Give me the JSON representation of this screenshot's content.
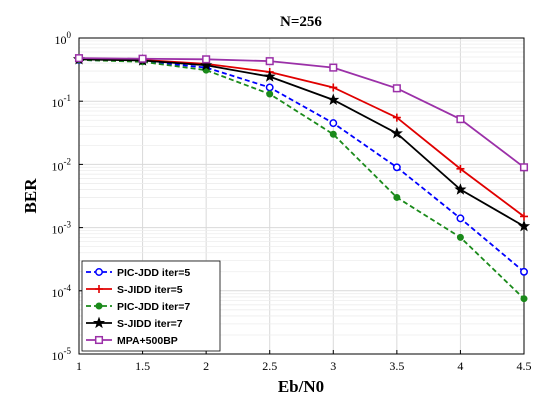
{
  "chart_data": {
    "type": "line",
    "title": "N=256",
    "xlabel": "Eb/N0",
    "ylabel": "BER",
    "x": [
      1,
      1.5,
      2,
      2.5,
      3,
      3.5,
      4,
      4.5
    ],
    "x_tick_labels": [
      "1",
      "1.5",
      "2",
      "2.5",
      "3",
      "3.5",
      "4",
      "4.5"
    ],
    "xlim": [
      1,
      4.5
    ],
    "ylim": [
      1e-05,
      1
    ],
    "y_scale": "log",
    "y_ticks": [
      {
        "base": "10",
        "exp": "0"
      },
      {
        "base": "10",
        "exp": "-1"
      },
      {
        "base": "10",
        "exp": "-2"
      },
      {
        "base": "10",
        "exp": "-3"
      },
      {
        "base": "10",
        "exp": "-4"
      },
      {
        "base": "10",
        "exp": "-5"
      }
    ],
    "grid": true,
    "legend_position": "bottom-left",
    "series": [
      {
        "name": "PIC-JDD iter=5",
        "color": "#0000ff",
        "line": "dashed",
        "marker": "circle-open",
        "values": [
          0.45,
          0.43,
          0.34,
          0.165,
          0.045,
          0.009,
          0.0014,
          0.0002
        ]
      },
      {
        "name": "S-JIDD iter=5",
        "color": "#e00000",
        "line": "solid",
        "marker": "plus",
        "values": [
          0.47,
          0.45,
          0.39,
          0.29,
          0.165,
          0.055,
          0.0085,
          0.0015
        ]
      },
      {
        "name": "PIC-JDD iter=7",
        "color": "#1a8a1a",
        "line": "dashed",
        "marker": "dot",
        "values": [
          0.45,
          0.42,
          0.31,
          0.13,
          0.03,
          0.003,
          0.0007,
          7.5e-05
        ]
      },
      {
        "name": "S-JIDD iter=7",
        "color": "#000000",
        "line": "solid",
        "marker": "star",
        "values": [
          0.46,
          0.44,
          0.37,
          0.245,
          0.105,
          0.031,
          0.004,
          0.00105
        ]
      },
      {
        "name": "MPA+500BP",
        "color": "#9b30a8",
        "line": "solid",
        "marker": "square-open",
        "values": [
          0.48,
          0.47,
          0.46,
          0.43,
          0.34,
          0.16,
          0.052,
          0.009
        ]
      }
    ]
  }
}
